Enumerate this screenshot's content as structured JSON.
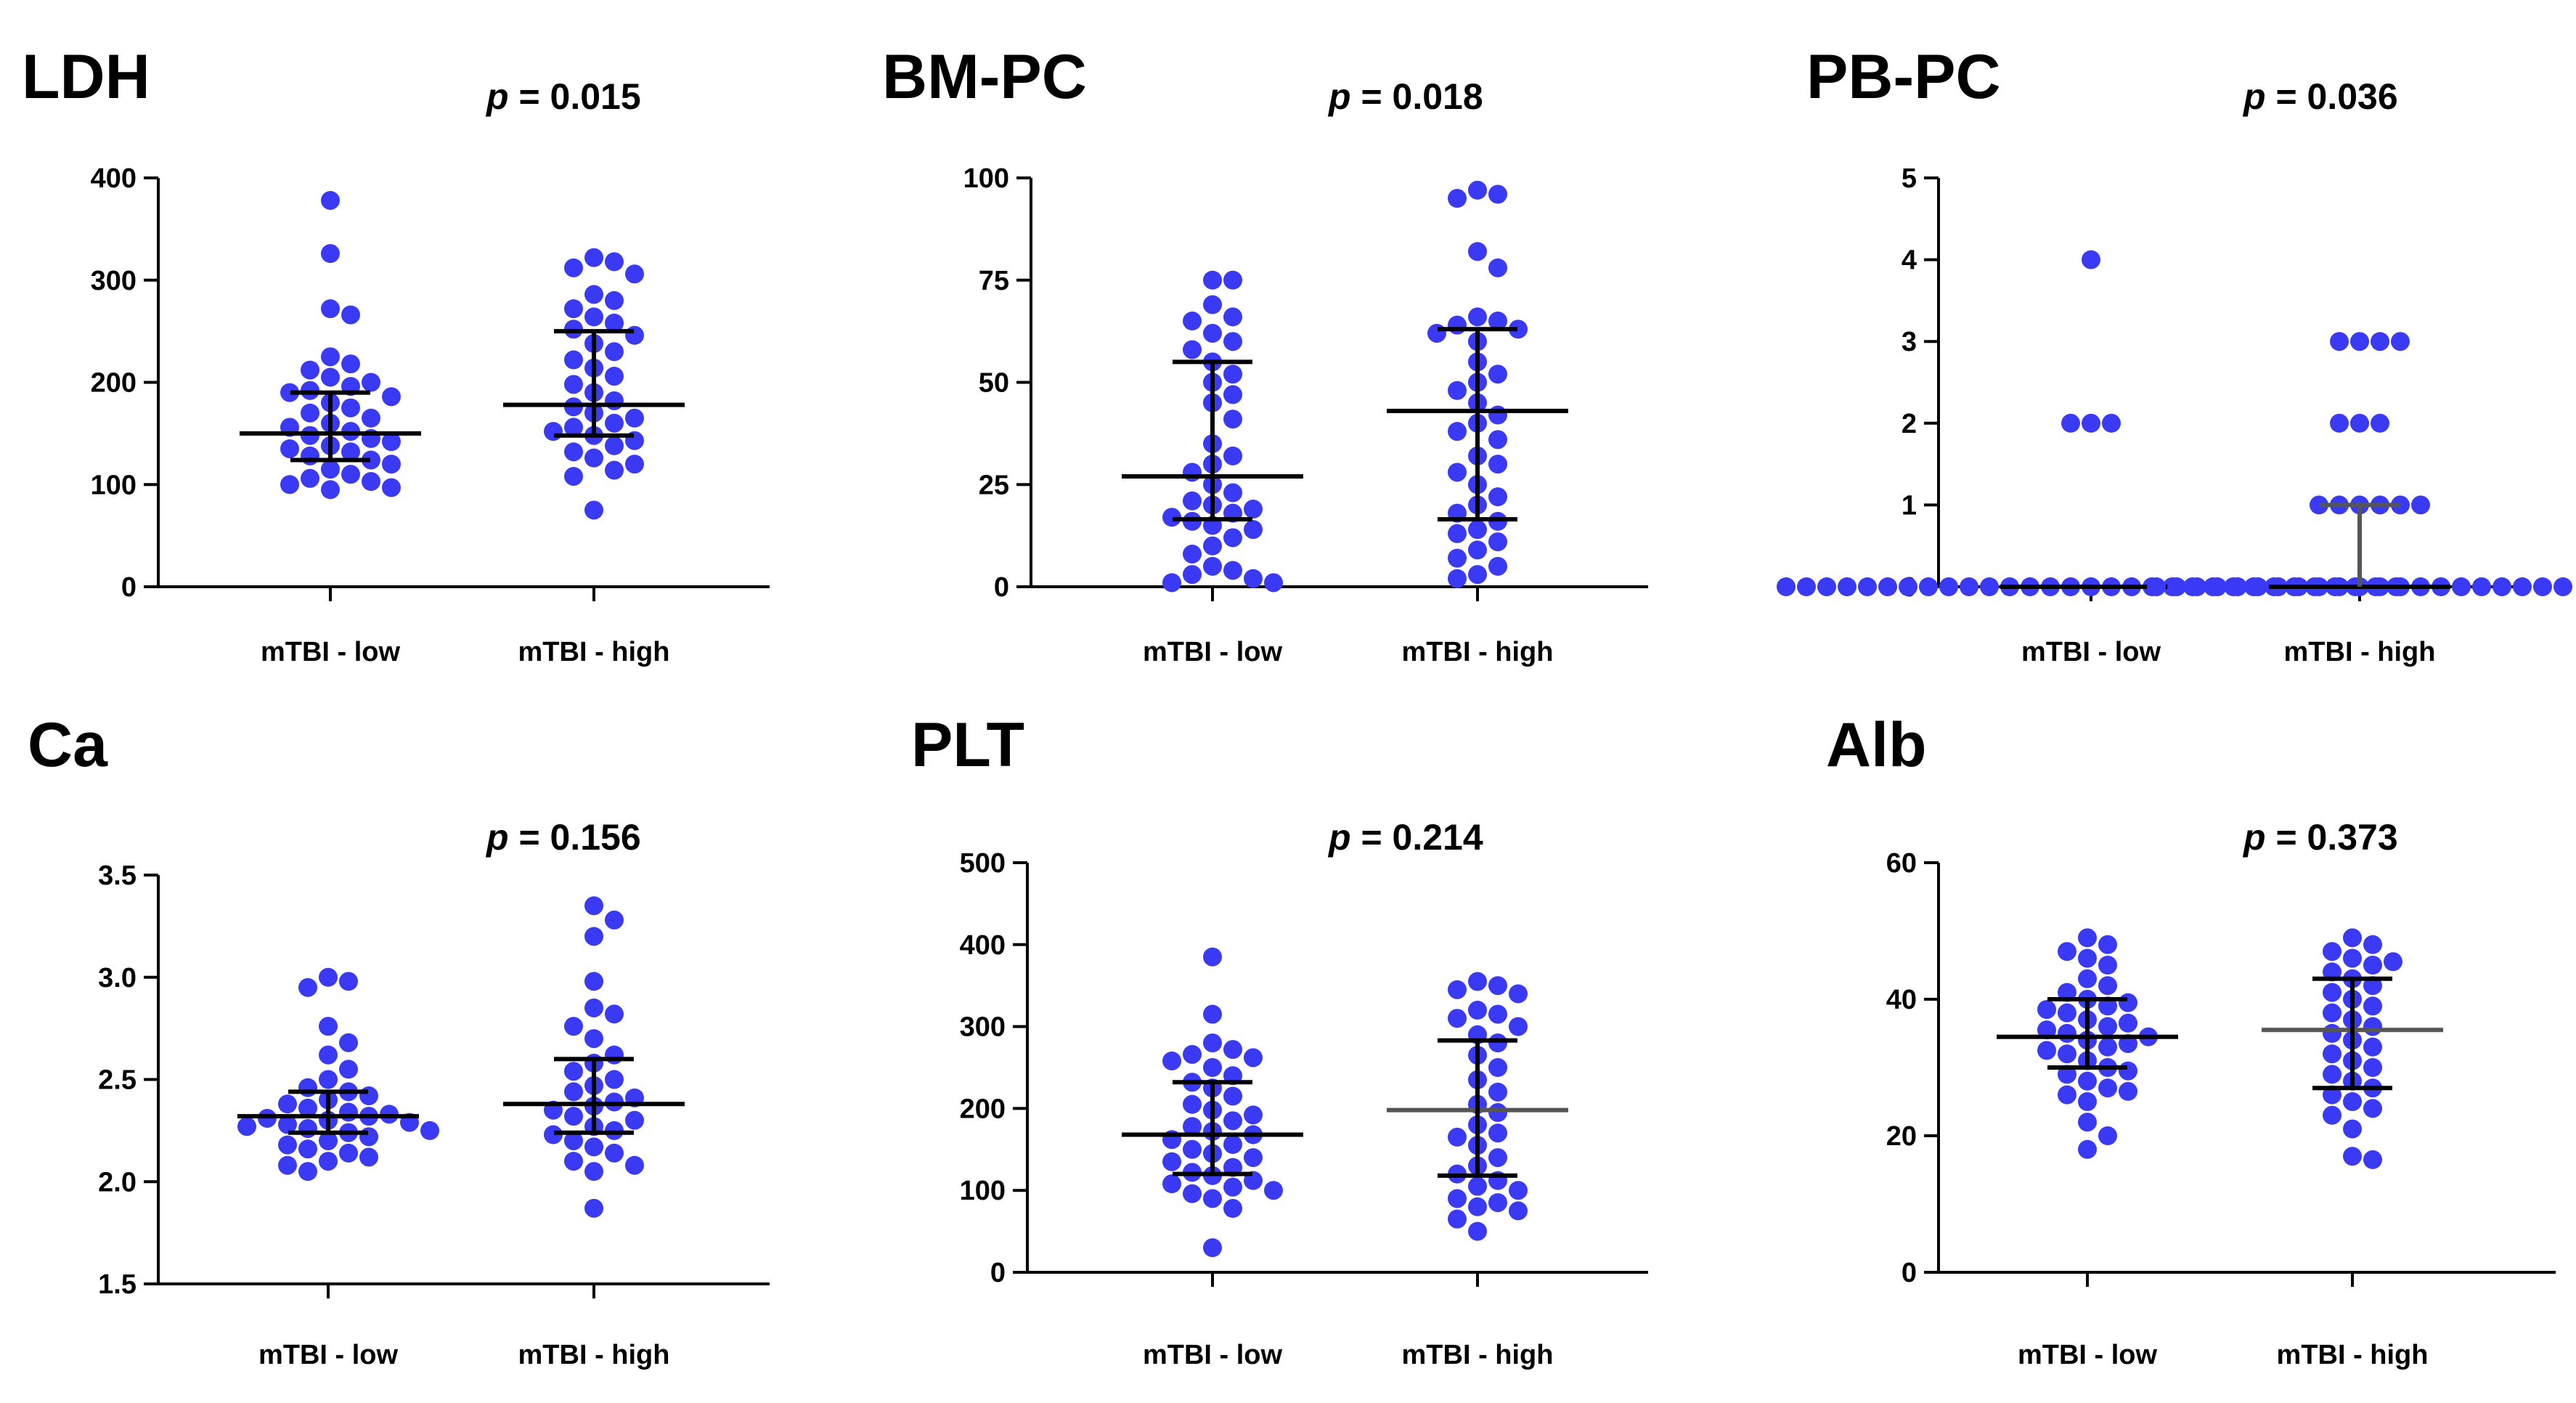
{
  "chart_data": [
    {
      "type": "scatter",
      "panel_label": "LDH",
      "p_label": "p",
      "p_value": "= 0.015",
      "categories": [
        "mTBI - low",
        "mTBI - high"
      ],
      "ylim": [
        0,
        400
      ],
      "yticks": [
        0,
        100,
        200,
        300,
        400
      ],
      "ytick_labels": [
        "0",
        "100",
        "200",
        "300",
        "400"
      ],
      "series": [
        {
          "name": "mTBI - low",
          "values": [
            378,
            326,
            272,
            266,
            225,
            218,
            212,
            205,
            200,
            196,
            192,
            190,
            186,
            180,
            175,
            170,
            165,
            160,
            156,
            152,
            148,
            145,
            142,
            138,
            135,
            132,
            128,
            124,
            120,
            115,
            110,
            106,
            103,
            100,
            97,
            95
          ],
          "median": 150,
          "q1": 124,
          "q3": 190
        },
        {
          "name": "mTBI - high",
          "values": [
            322,
            318,
            312,
            306,
            286,
            280,
            272,
            264,
            258,
            252,
            246,
            238,
            230,
            222,
            214,
            206,
            198,
            190,
            182,
            176,
            170,
            165,
            160,
            156,
            152,
            148,
            143,
            138,
            132,
            126,
            120,
            114,
            108,
            75
          ],
          "median": 178,
          "q1": 148,
          "q3": 250
        }
      ]
    },
    {
      "type": "scatter",
      "panel_label": "BM-PC",
      "p_label": "p",
      "p_value": "= 0.018",
      "categories": [
        "mTBI - low",
        "mTBI - high"
      ],
      "ylim": [
        0,
        100
      ],
      "yticks": [
        0,
        25,
        50,
        75,
        100
      ],
      "ytick_labels": [
        "0",
        "25",
        "50",
        "75",
        "100"
      ],
      "series": [
        {
          "name": "mTBI - low",
          "values": [
            75,
            75,
            69,
            66,
            65,
            62,
            60,
            58,
            55,
            52,
            50,
            47,
            45,
            41,
            35,
            32,
            30,
            28,
            25,
            23,
            21,
            20,
            19,
            18,
            17,
            16,
            15,
            14,
            12,
            10,
            8,
            5,
            4,
            3,
            2,
            1,
            1
          ],
          "median": 27,
          "q1": 16.5,
          "q3": 55
        },
        {
          "name": "mTBI - high",
          "values": [
            97,
            96,
            95,
            82,
            78,
            66,
            65,
            64,
            63,
            62,
            60,
            55,
            52,
            50,
            48,
            45,
            42,
            40,
            38,
            36,
            32,
            30,
            28,
            25,
            22,
            20,
            18,
            16,
            14,
            13,
            11,
            9,
            7,
            5,
            3,
            2
          ],
          "median": 43,
          "q1": 16.5,
          "q3": 63
        }
      ]
    },
    {
      "type": "scatter",
      "panel_label": "PB-PC",
      "p_label": "p",
      "p_value": "= 0.036",
      "categories": [
        "mTBI - low",
        "mTBI - high"
      ],
      "ylim": [
        0,
        5
      ],
      "yticks": [
        0,
        1,
        2,
        3,
        4,
        5
      ],
      "ytick_labels": [
        "0",
        "1",
        "2",
        "3",
        "4",
        "5"
      ],
      "series": [
        {
          "name": "mTBI - low",
          "values": [
            4,
            2,
            2,
            2,
            0,
            0,
            0,
            0,
            0,
            0,
            0,
            0,
            0,
            0,
            0,
            0,
            0,
            0,
            0,
            0,
            0,
            0,
            0,
            0,
            0,
            0,
            0,
            0,
            0,
            0,
            0,
            0,
            0,
            0,
            0
          ],
          "median": 0,
          "q1": 0,
          "q3": 0
        },
        {
          "name": "mTBI - high",
          "values": [
            3,
            3,
            3,
            3,
            2,
            2,
            2,
            1,
            1,
            1,
            1,
            1,
            1,
            0,
            0,
            0,
            0,
            0,
            0,
            0,
            0,
            0,
            0,
            0,
            0,
            0,
            0,
            0,
            0,
            0,
            0,
            0,
            0,
            0
          ],
          "median": 0,
          "q1": 0,
          "q3": 1
        }
      ]
    },
    {
      "type": "scatter",
      "panel_label": "Ca",
      "p_label": "p",
      "p_value": "= 0.156",
      "categories": [
        "mTBI - low",
        "mTBI - high"
      ],
      "ylim": [
        1.5,
        3.5
      ],
      "yticks": [
        1.5,
        2.0,
        2.5,
        3.0,
        3.5
      ],
      "ytick_labels": [
        "1.5",
        "2.0",
        "2.5",
        "3.0",
        "3.5"
      ],
      "series": [
        {
          "name": "mTBI - low",
          "values": [
            3.0,
            2.98,
            2.95,
            2.76,
            2.68,
            2.62,
            2.55,
            2.5,
            2.46,
            2.44,
            2.42,
            2.4,
            2.38,
            2.36,
            2.34,
            2.33,
            2.32,
            2.31,
            2.3,
            2.29,
            2.28,
            2.27,
            2.26,
            2.25,
            2.24,
            2.22,
            2.2,
            2.18,
            2.16,
            2.14,
            2.12,
            2.1,
            2.08,
            2.05
          ],
          "median": 2.32,
          "q1": 2.24,
          "q3": 2.44
        },
        {
          "name": "mTBI - high",
          "values": [
            3.35,
            3.28,
            3.2,
            2.98,
            2.85,
            2.82,
            2.76,
            2.7,
            2.62,
            2.58,
            2.54,
            2.5,
            2.47,
            2.44,
            2.41,
            2.39,
            2.37,
            2.35,
            2.32,
            2.3,
            2.27,
            2.25,
            2.23,
            2.2,
            2.17,
            2.14,
            2.1,
            2.08,
            2.05,
            1.87
          ],
          "median": 2.38,
          "q1": 2.24,
          "q3": 2.6
        }
      ]
    },
    {
      "type": "scatter",
      "panel_label": "PLT",
      "p_label": "p",
      "p_value": "= 0.214",
      "categories": [
        "mTBI - low",
        "mTBI - high"
      ],
      "ylim": [
        0,
        500
      ],
      "yticks": [
        0,
        100,
        200,
        300,
        400,
        500
      ],
      "ytick_labels": [
        "0",
        "100",
        "200",
        "300",
        "400",
        "500"
      ],
      "series": [
        {
          "name": "mTBI - low",
          "values": [
            385,
            315,
            280,
            272,
            266,
            262,
            258,
            250,
            240,
            232,
            225,
            215,
            205,
            198,
            192,
            185,
            178,
            172,
            168,
            162,
            156,
            150,
            145,
            140,
            135,
            128,
            122,
            118,
            112,
            108,
            104,
            100,
            96,
            90,
            78,
            30
          ],
          "median": 168,
          "q1": 120,
          "q3": 232
        },
        {
          "name": "mTBI - high",
          "values": [
            355,
            350,
            345,
            340,
            320,
            315,
            310,
            300,
            290,
            280,
            265,
            250,
            235,
            220,
            205,
            195,
            180,
            170,
            165,
            155,
            140,
            130,
            120,
            112,
            105,
            100,
            90,
            85,
            80,
            75,
            65,
            50
          ],
          "median": 198,
          "q1": 118,
          "q3": 283
        }
      ]
    },
    {
      "type": "scatter",
      "panel_label": "Alb",
      "p_label": "p",
      "p_value": "= 0.373",
      "categories": [
        "mTBI - low",
        "mTBI - high"
      ],
      "ylim": [
        0,
        60
      ],
      "yticks": [
        0,
        20,
        40,
        60
      ],
      "ytick_labels": [
        "0",
        "20",
        "40",
        "60"
      ],
      "series": [
        {
          "name": "mTBI - low",
          "values": [
            49,
            48,
            47,
            46,
            45,
            43,
            42,
            41,
            40,
            39.5,
            39,
            38.5,
            38,
            37,
            36.5,
            36,
            35.5,
            35,
            34.5,
            34,
            33.5,
            33,
            32.5,
            32,
            31,
            30,
            29.5,
            29,
            28,
            27,
            26.5,
            26,
            25,
            22,
            20,
            18
          ],
          "median": 34.5,
          "q1": 30,
          "q3": 40
        },
        {
          "name": "mTBI - high",
          "values": [
            49,
            48,
            47,
            46,
            45.5,
            45,
            44,
            43,
            42,
            41,
            40,
            39,
            38,
            37,
            36,
            35,
            34,
            33,
            32,
            31,
            30,
            29,
            28,
            27,
            26,
            25,
            24,
            23,
            21,
            17,
            16.5
          ],
          "median": 35.5,
          "q1": 27,
          "q3": 43
        }
      ]
    }
  ]
}
